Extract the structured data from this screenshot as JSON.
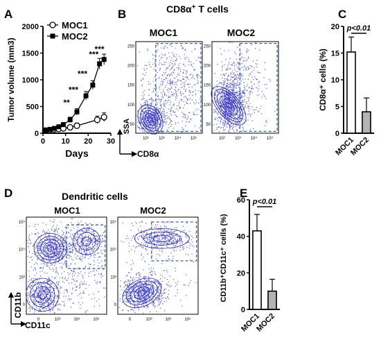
{
  "panels": {
    "A": {
      "letter": "A"
    },
    "B": {
      "letter": "B",
      "title_main": "CD8α",
      "title_sup": "+",
      "title_rest": " T cells",
      "plot1_label": "MOC1",
      "plot2_label": "MOC2",
      "yaxis": "SSA",
      "xaxis": "CD8α"
    },
    "C": {
      "letter": "C"
    },
    "D": {
      "letter": "D",
      "title": "Dendritic  cells",
      "plot1_label": "MOC1",
      "plot2_label": "MOC2",
      "yaxis": "CD11b",
      "xaxis": "CD11c"
    },
    "E": {
      "letter": "E"
    }
  },
  "flow_ticks": {
    "b_x": [
      "10²",
      "10³",
      "10⁴",
      "10⁵"
    ],
    "b_y": [
      "250",
      "200",
      "150",
      "100",
      "50"
    ],
    "d_x": [
      "0",
      "10³",
      "10⁴",
      "10⁵"
    ],
    "d_y": [
      "10⁵",
      "10⁴",
      "10³",
      "0"
    ]
  },
  "colors": {
    "moc2_bar": "#b3b3b3",
    "flow_dots": "#1a1acc",
    "gate": "#3366aa"
  },
  "chart_data": [
    {
      "id": "A",
      "type": "line",
      "xlabel": "Days",
      "ylabel": "Tumor volume (mm3)",
      "xlim": [
        0,
        30
      ],
      "ylim": [
        0,
        2000
      ],
      "xticks": [
        0,
        10,
        20,
        30
      ],
      "yticks": [
        0,
        500,
        1000,
        1500,
        2000
      ],
      "legend_position": "top-right",
      "series": [
        {
          "name": "MOC1",
          "marker": "open-circle",
          "x": [
            1,
            3,
            5,
            7,
            9,
            12,
            15,
            24,
            27
          ],
          "y": [
            50,
            60,
            75,
            80,
            90,
            110,
            140,
            250,
            300
          ],
          "err": [
            20,
            25,
            25,
            25,
            30,
            40,
            50,
            70,
            80
          ]
        },
        {
          "name": "MOC2",
          "marker": "filled-square",
          "x": [
            1,
            3,
            5,
            7,
            9,
            12,
            15,
            19,
            22,
            25,
            27
          ],
          "y": [
            50,
            70,
            90,
            120,
            160,
            250,
            400,
            700,
            900,
            1300,
            1380
          ],
          "err": [
            20,
            25,
            30,
            30,
            40,
            50,
            60,
            80,
            80,
            100,
            100
          ]
        }
      ],
      "annotations": [
        {
          "text": "**",
          "x": 12,
          "y": 520
        },
        {
          "text": "***",
          "x": 15,
          "y": 760
        },
        {
          "text": "***",
          "x": 19,
          "y": 1060
        },
        {
          "text": "***",
          "x": 24,
          "y": 1420
        },
        {
          "text": "***",
          "x": 26.5,
          "y": 1520
        }
      ]
    },
    {
      "id": "C",
      "type": "bar",
      "categories": [
        "MOC1",
        "MOC2"
      ],
      "values": [
        15.2,
        4.0
      ],
      "err": [
        2.8,
        2.6
      ],
      "ylabel": "CD8α⁺ cells (%)",
      "ylim": [
        0,
        20
      ],
      "yticks": [
        0,
        5,
        10,
        15,
        20
      ],
      "significance": "p<0.01"
    },
    {
      "id": "E",
      "type": "bar",
      "categories": [
        "MOC1",
        "MOC2"
      ],
      "values": [
        43,
        10
      ],
      "err": [
        9,
        6.5
      ],
      "ylabel": "CD11b⁺CD11c⁺ cells (%)",
      "ylim": [
        0,
        60
      ],
      "yticks": [
        0,
        20,
        40,
        60
      ],
      "significance": "p<0.01"
    }
  ]
}
